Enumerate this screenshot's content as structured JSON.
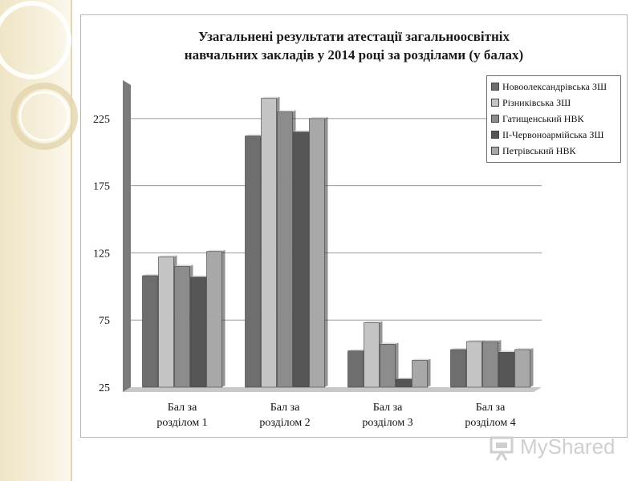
{
  "chart_data": {
    "type": "bar",
    "title_line1": "Узагальнені результати атестації загальноосвітніх",
    "title_line2": "навчальних закладів  у 2014 році за розділами (у балах)",
    "categories": [
      "Бал за розділом 1",
      "Бал за розділом 2",
      "Бал за розділом 3",
      "Бал за розділом 4"
    ],
    "category_lines": [
      [
        "Бал за",
        "розділом 1"
      ],
      [
        "Бал за",
        "розділом 2"
      ],
      [
        "Бал за",
        "розділом 3"
      ],
      [
        "Бал за",
        "розділом 4"
      ]
    ],
    "series": [
      {
        "name": "Новоолександрівська ЗШ",
        "color": "#6e6e6e",
        "values": [
          108,
          212,
          52,
          53
        ]
      },
      {
        "name": "Різниківська ЗШ",
        "color": "#c4c4c4",
        "values": [
          122,
          240,
          73,
          59
        ]
      },
      {
        "name": "Гатищенський НВК",
        "color": "#8c8c8c",
        "values": [
          115,
          230,
          57,
          59
        ]
      },
      {
        "name": "ІІ-Червоноармійська ЗШ",
        "color": "#555555",
        "values": [
          107,
          215,
          31,
          51
        ]
      },
      {
        "name": "Петрівський НВК",
        "color": "#a8a8a8",
        "values": [
          126,
          225,
          45,
          53
        ]
      }
    ],
    "ylim": [
      25,
      250
    ],
    "yticks": [
      25,
      75,
      125,
      175,
      225
    ],
    "grid": true,
    "legend_position": "top-right"
  },
  "watermark": {
    "text": "MyShared"
  }
}
